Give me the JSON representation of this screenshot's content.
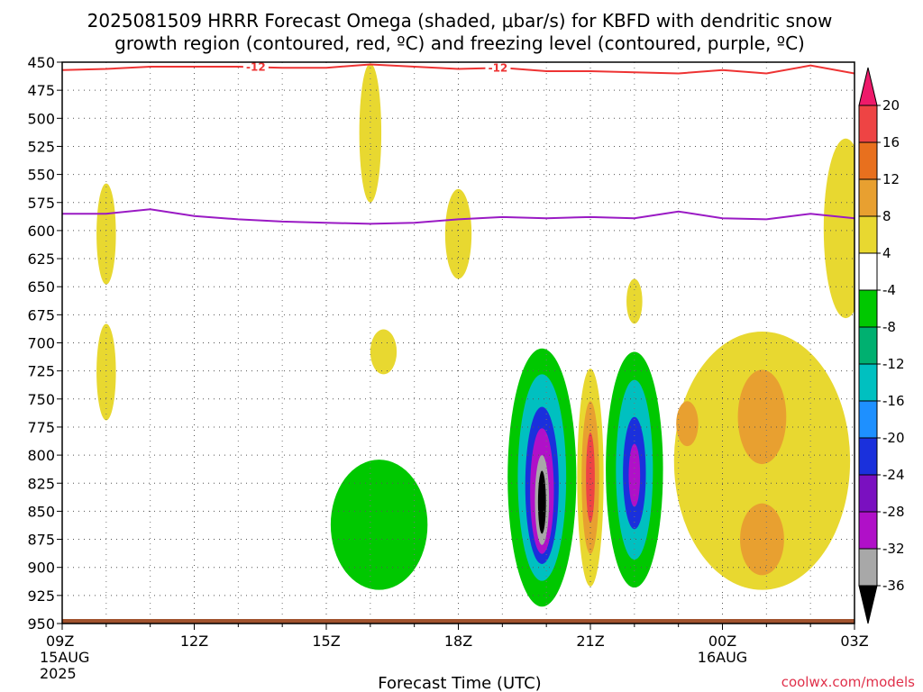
{
  "title": {
    "line1": "2025081509 HRRR Forecast Omega (shaded, μbar/s) for KBFD with dendritic snow",
    "line2": "growth region (contoured, red, ºC) and freezing level (contoured, purple, ºC)"
  },
  "credit": "coolwx.com/models",
  "chart_data": {
    "type": "heatmap",
    "title": "2025081509 HRRR Forecast Omega (shaded, μbar/s) for KBFD with dendritic snow growth region (contoured, red, ºC) and freezing level (contoured, purple, ºC)",
    "xlabel": "Forecast Time (UTC)",
    "ylabel": "",
    "x_range_hours_utc": [
      9,
      27
    ],
    "y_range": [
      450,
      950
    ],
    "y_inverted": true,
    "grid": true,
    "y_ticks": [
      "450",
      "475",
      "500",
      "525",
      "550",
      "575",
      "600",
      "625",
      "650",
      "675",
      "700",
      "725",
      "750",
      "775",
      "800",
      "825",
      "850",
      "875",
      "900",
      "925",
      "950"
    ],
    "x_ticks": [
      {
        "hour": 9,
        "label": "09Z",
        "sub1": "15AUG",
        "sub2": "2025"
      },
      {
        "hour": 12,
        "label": "12Z",
        "sub1": "",
        "sub2": ""
      },
      {
        "hour": 15,
        "label": "15Z",
        "sub1": "",
        "sub2": ""
      },
      {
        "hour": 18,
        "label": "18Z",
        "sub1": "",
        "sub2": ""
      },
      {
        "hour": 21,
        "label": "21Z",
        "sub1": "",
        "sub2": ""
      },
      {
        "hour": 24,
        "label": "00Z",
        "sub1": "16AUG",
        "sub2": ""
      },
      {
        "hour": 27,
        "label": "03Z",
        "sub1": "",
        "sub2": ""
      }
    ],
    "colorbar": {
      "labels": [
        "20",
        "16",
        "12",
        "8",
        "4",
        "-4",
        "-8",
        "-12",
        "-16",
        "-20",
        "-24",
        "-28",
        "-32",
        "-36"
      ],
      "bins": [
        {
          "color": "#ee1a6a"
        },
        {
          "color": "#ee4444"
        },
        {
          "color": "#e8701e"
        },
        {
          "color": "#e8a030"
        },
        {
          "color": "#e8d830"
        },
        {
          "color": "#ffffff"
        },
        {
          "color": "#00c800"
        },
        {
          "color": "#00b070"
        },
        {
          "color": "#00c0c0"
        },
        {
          "color": "#1e90ff"
        },
        {
          "color": "#1a30dc"
        },
        {
          "color": "#7a10c0"
        },
        {
          "color": "#b010c8"
        },
        {
          "color": "#a8a8a8"
        },
        {
          "color": "#000000"
        }
      ]
    },
    "series": [
      {
        "name": "-12",
        "kind": "dendritic snow growth region (ºC)",
        "color": "#ee3333",
        "label_positions_hours": [
          13.4,
          18.9
        ],
        "points": [
          [
            9,
            457
          ],
          [
            10,
            456
          ],
          [
            11,
            454
          ],
          [
            12,
            454
          ],
          [
            13,
            454
          ],
          [
            14,
            455
          ],
          [
            15,
            455
          ],
          [
            16,
            452
          ],
          [
            17,
            454
          ],
          [
            18,
            456
          ],
          [
            19,
            455
          ],
          [
            20,
            458
          ],
          [
            21,
            458
          ],
          [
            22,
            459
          ],
          [
            23,
            460
          ],
          [
            24,
            457
          ],
          [
            25,
            460
          ],
          [
            26,
            453
          ],
          [
            27,
            460
          ]
        ]
      },
      {
        "name": "",
        "kind": "freezing level (ºC)",
        "color": "#9a1ac4",
        "points": [
          [
            9,
            585
          ],
          [
            10,
            585
          ],
          [
            11,
            581
          ],
          [
            12,
            587
          ],
          [
            13,
            590
          ],
          [
            14,
            592
          ],
          [
            15,
            593
          ],
          [
            16,
            594
          ],
          [
            17,
            593
          ],
          [
            18,
            590
          ],
          [
            19,
            588
          ],
          [
            20,
            589
          ],
          [
            21,
            588
          ],
          [
            22,
            589
          ],
          [
            23,
            583
          ],
          [
            24,
            589
          ],
          [
            25,
            590
          ],
          [
            26,
            585
          ],
          [
            27,
            589
          ]
        ]
      }
    ],
    "shaded_regions": [
      {
        "color": "#e8d830",
        "h": 16.0,
        "p": 513,
        "dh": 0.25,
        "dp": 62
      },
      {
        "color": "#e8d830",
        "h": 10.0,
        "p": 603,
        "dh": 0.22,
        "dp": 45
      },
      {
        "color": "#e8d830",
        "h": 18.0,
        "p": 603,
        "dh": 0.3,
        "dp": 40
      },
      {
        "color": "#e8d830",
        "h": 10.0,
        "p": 726,
        "dh": 0.22,
        "dp": 43
      },
      {
        "color": "#e8d830",
        "h": 16.3,
        "p": 708,
        "dh": 0.3,
        "dp": 20
      },
      {
        "color": "#e8d830",
        "h": 22.0,
        "p": 663,
        "dh": 0.18,
        "dp": 20
      },
      {
        "color": "#e8d830",
        "h": 26.8,
        "p": 598,
        "dh": 0.5,
        "dp": 80
      },
      {
        "color": "#e8d830",
        "h": 24.9,
        "p": 805,
        "dh": 2.0,
        "dp": 115
      },
      {
        "color": "#e8a030",
        "h": 24.9,
        "p": 766,
        "dh": 0.55,
        "dp": 42
      },
      {
        "color": "#e8a030",
        "h": 24.9,
        "p": 875,
        "dh": 0.5,
        "dp": 32
      },
      {
        "color": "#e8a030",
        "h": 23.2,
        "p": 772,
        "dh": 0.25,
        "dp": 20
      },
      {
        "color": "#00c800",
        "h": 16.2,
        "p": 862,
        "dh": 1.1,
        "dp": 58
      },
      {
        "color": "#00c800",
        "h": 19.9,
        "p": 820,
        "dh": 0.78,
        "dp": 115
      },
      {
        "color": "#00c0c0",
        "h": 19.9,
        "p": 820,
        "dh": 0.55,
        "dp": 92
      },
      {
        "color": "#1a30dc",
        "h": 19.9,
        "p": 827,
        "dh": 0.38,
        "dp": 70
      },
      {
        "color": "#b010c8",
        "h": 19.9,
        "p": 832,
        "dh": 0.27,
        "dp": 56
      },
      {
        "color": "#a8a8a8",
        "h": 19.9,
        "p": 840,
        "dh": 0.16,
        "dp": 40
      },
      {
        "color": "#000000",
        "h": 19.9,
        "p": 842,
        "dh": 0.09,
        "dp": 28
      },
      {
        "color": "#e8d830",
        "h": 21.0,
        "p": 820,
        "dh": 0.3,
        "dp": 97
      },
      {
        "color": "#e8a030",
        "h": 21.0,
        "p": 820,
        "dh": 0.2,
        "dp": 68
      },
      {
        "color": "#ee4444",
        "h": 21.0,
        "p": 820,
        "dh": 0.1,
        "dp": 40
      },
      {
        "color": "#00c800",
        "h": 22.0,
        "p": 813,
        "dh": 0.65,
        "dp": 105
      },
      {
        "color": "#00c0c0",
        "h": 22.0,
        "p": 813,
        "dh": 0.42,
        "dp": 80
      },
      {
        "color": "#1a30dc",
        "h": 22.0,
        "p": 816,
        "dh": 0.26,
        "dp": 50
      },
      {
        "color": "#b010c8",
        "h": 22.0,
        "p": 818,
        "dh": 0.13,
        "dp": 28
      }
    ],
    "ground": {
      "color": "#a0522d"
    }
  }
}
